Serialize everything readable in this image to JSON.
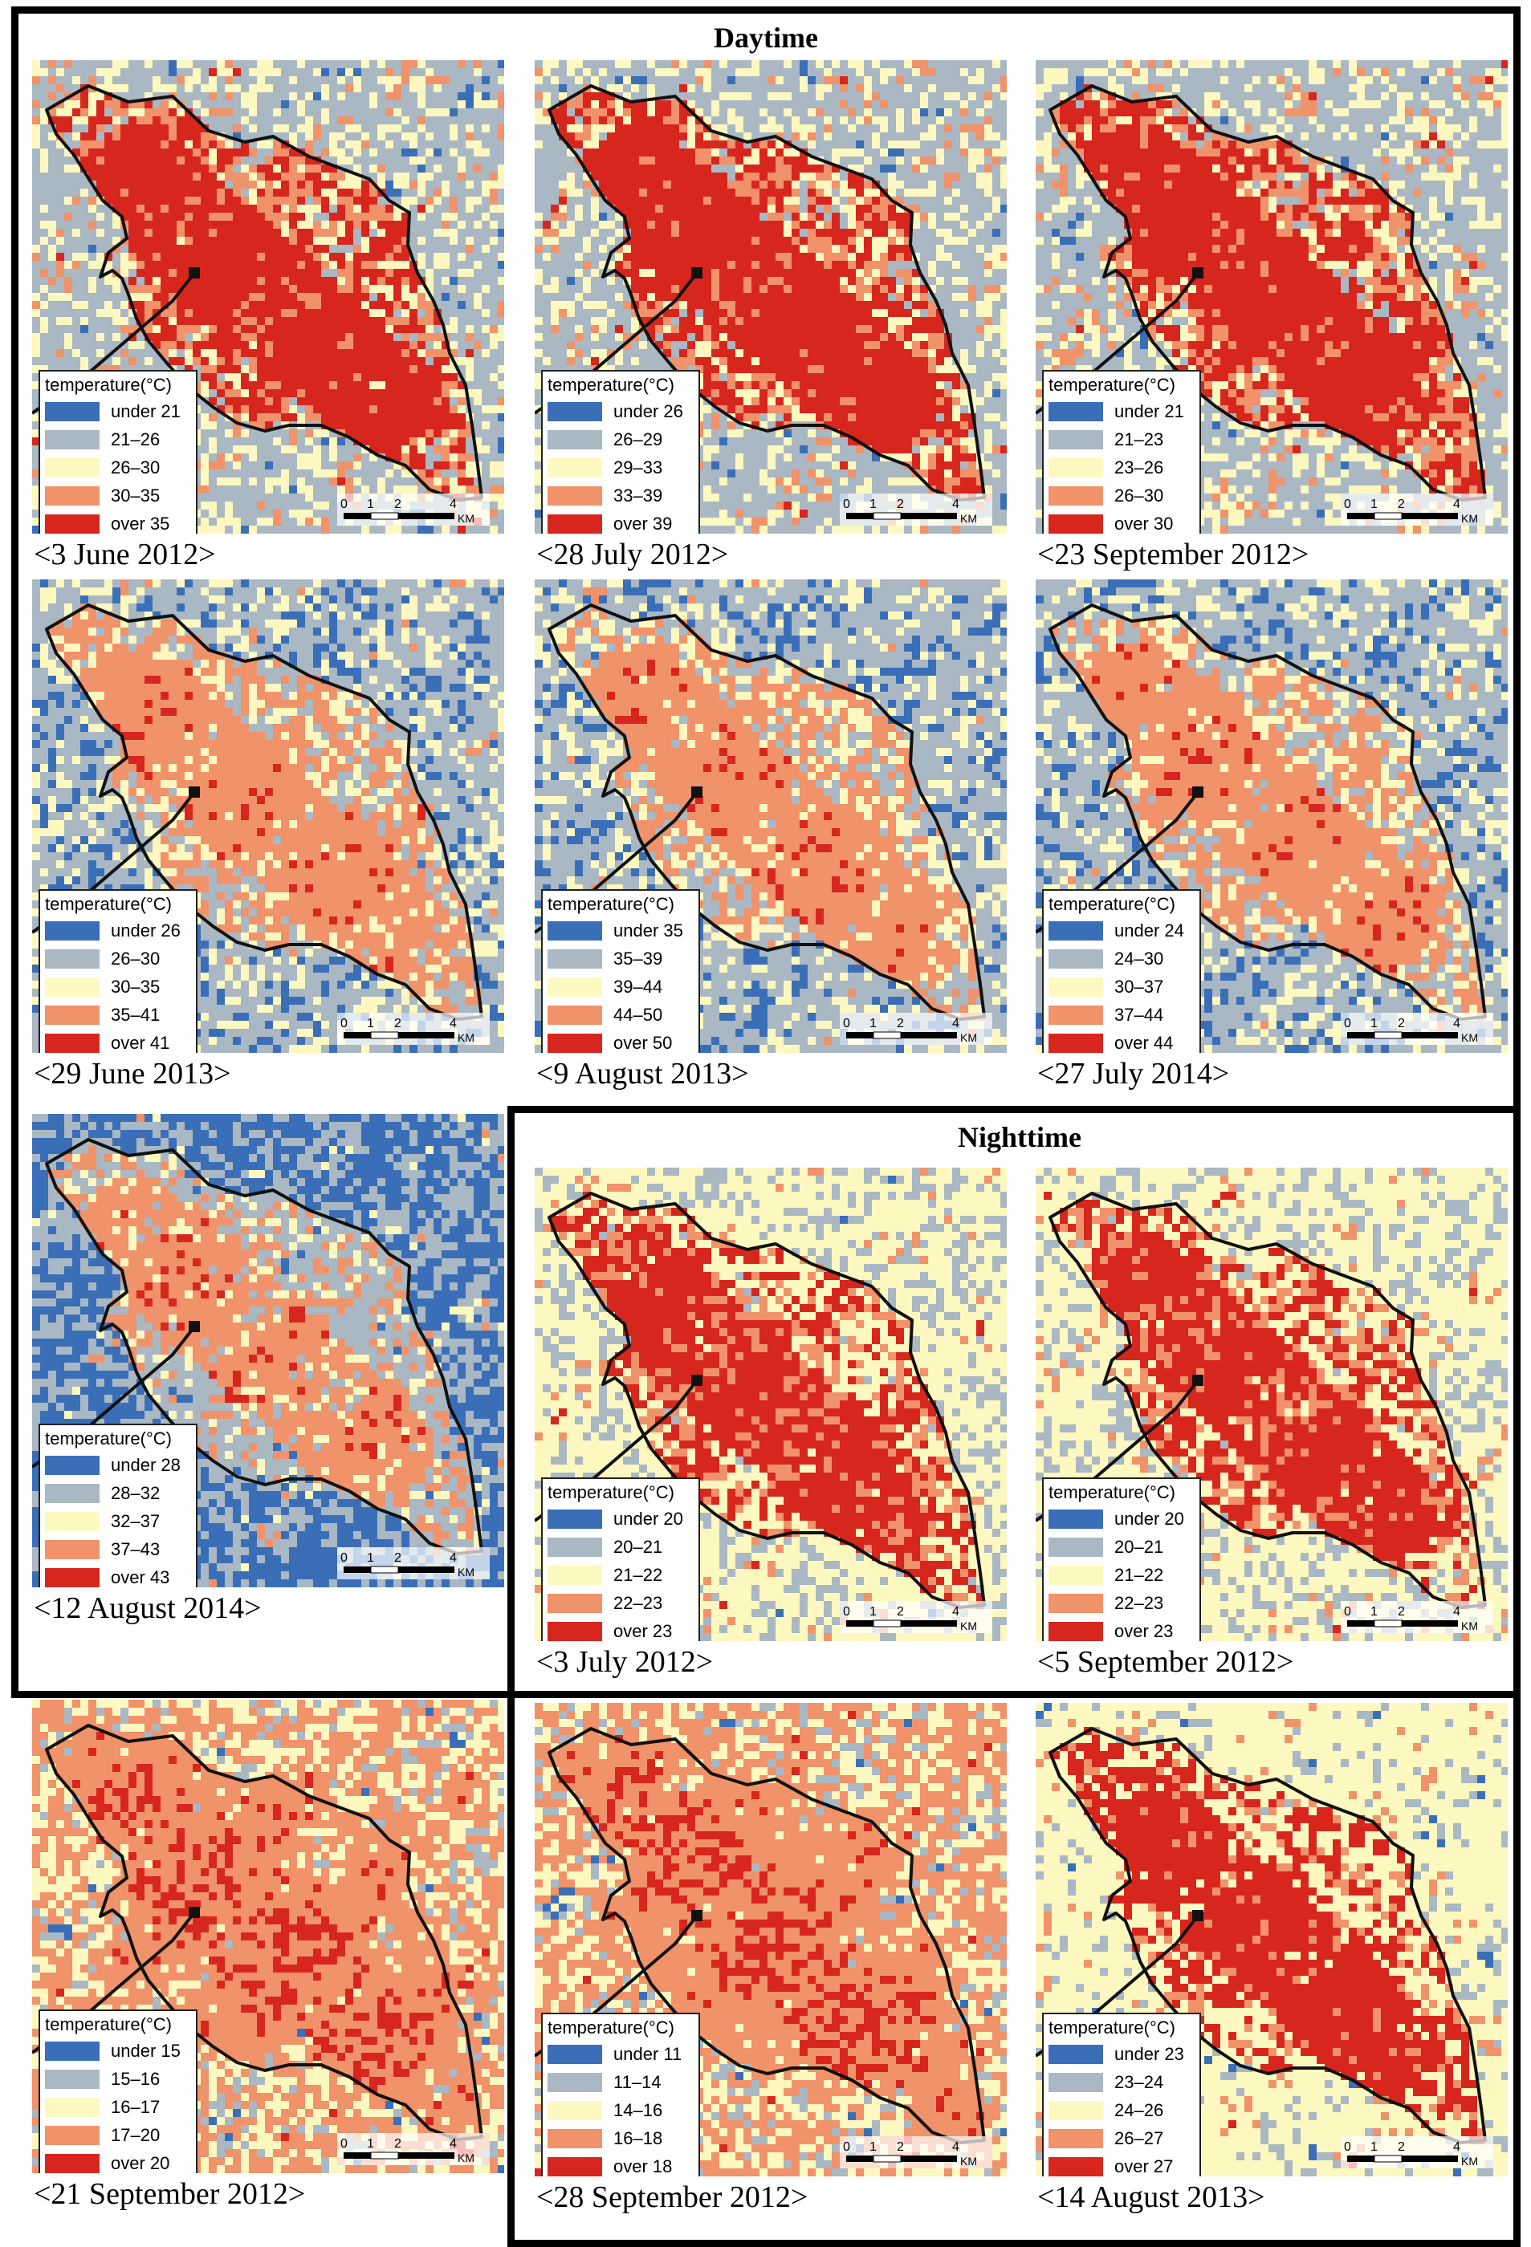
{
  "sections": {
    "daytime": "Daytime",
    "nighttime": "Nighttime"
  },
  "legend_title": "temperature(°C)",
  "scale_labels": [
    "0",
    "1",
    "2",
    "4",
    "KM"
  ],
  "class_colors": [
    "#3a6fb8",
    "#a9b8c3",
    "#fdf8c0",
    "#f0926a",
    "#d7261e"
  ],
  "panels": [
    {
      "caption": "<3 June 2012>",
      "period": "Daytime",
      "classes": [
        "under 21",
        "21–26",
        "26–30",
        "30–35",
        "over 35"
      ],
      "palette": "hot"
    },
    {
      "caption": "<28 July 2012>",
      "period": "Daytime",
      "classes": [
        "under 26",
        "26–29",
        "29–33",
        "33–39",
        "over 39"
      ],
      "palette": "hot"
    },
    {
      "caption": "<23 September 2012>",
      "period": "Daytime",
      "classes": [
        "under 21",
        "21–23",
        "23–26",
        "26–30",
        "over 30"
      ],
      "palette": "hot"
    },
    {
      "caption": "<29 June 2013>",
      "period": "Daytime",
      "classes": [
        "under 26",
        "26–30",
        "30–35",
        "35–41",
        "over 41"
      ],
      "palette": "warm"
    },
    {
      "caption": "<9 August 2013>",
      "period": "Daytime",
      "classes": [
        "under 35",
        "35–39",
        "39–44",
        "44–50",
        "over 50"
      ],
      "palette": "warm"
    },
    {
      "caption": "<27 July 2014>",
      "period": "Daytime",
      "classes": [
        "under 24",
        "24–30",
        "30–37",
        "37–44",
        "over 44"
      ],
      "palette": "warm"
    },
    {
      "caption": "<12 August 2014>",
      "period": "Daytime",
      "classes": [
        "under 28",
        "28–32",
        "32–37",
        "37–43",
        "over 43"
      ],
      "palette": "cool"
    },
    {
      "caption": "<3 July 2012>",
      "period": "Nighttime",
      "classes": [
        "under 20",
        "20–21",
        "21–22",
        "22–23",
        "over 23"
      ],
      "palette": "night-hot"
    },
    {
      "caption": "<5 September 2012>",
      "period": "Nighttime",
      "classes": [
        "under 20",
        "20–21",
        "21–22",
        "22–23",
        "over 23"
      ],
      "palette": "night-hot"
    },
    {
      "caption": "<21 September 2012>",
      "period": "Nighttime",
      "classes": [
        "under 15",
        "15–16",
        "16–17",
        "17–20",
        "over 20"
      ],
      "palette": "orange"
    },
    {
      "caption": "<28 September 2012>",
      "period": "Nighttime",
      "classes": [
        "under 11",
        "11–14",
        "14–16",
        "16–18",
        "over 18"
      ],
      "palette": "orange"
    },
    {
      "caption": "<14 August 2013>",
      "period": "Nighttime",
      "classes": [
        "under 23",
        "23–24",
        "24–26",
        "26–27",
        "over 27"
      ],
      "palette": "yellow"
    }
  ]
}
